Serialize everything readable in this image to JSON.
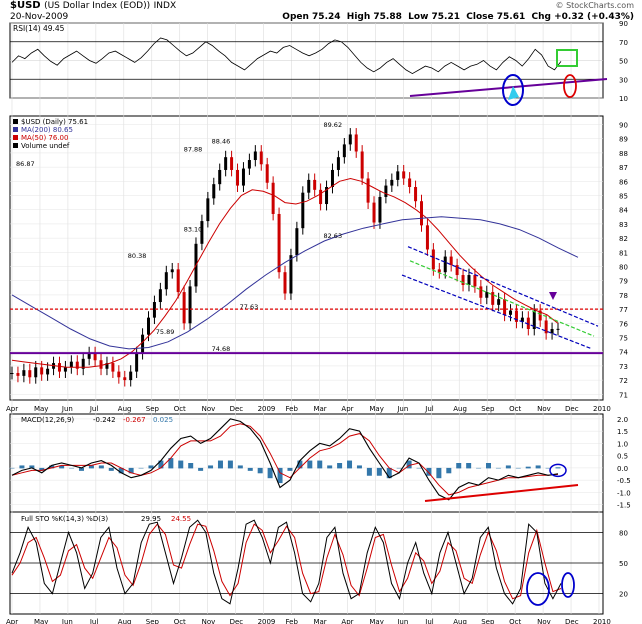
{
  "header": {
    "symbol": "$USD",
    "name": "(US Dollar Index (EOD))",
    "exchange": "INDX",
    "date": "20-Nov-2009",
    "open_label": "Open",
    "open": "75.24",
    "high_label": "High",
    "high": "75.88",
    "low_label": "Low",
    "low": "75.21",
    "close_label": "Close",
    "close": "75.61",
    "chg_label": "Chg",
    "chg": "+0.32 (+0.43%)",
    "copyright": "© StockCharts.com"
  },
  "colors": {
    "price_up": "#000000",
    "price_down": "#cc0000",
    "ma200": "#333399",
    "ma50": "#cc0000",
    "rsi_line": "#000000",
    "macd_hist": "#3377aa",
    "annotation_purple": "#660099",
    "annotation_blue": "#0000cc",
    "annotation_green": "#33cc33",
    "annotation_red": "#dd0000"
  },
  "chart_data": [
    {
      "panel": "rsi",
      "type": "line",
      "legend": "RSI(14) 49.45",
      "y_ticks": [
        "90",
        "70",
        "50",
        "30",
        "10"
      ],
      "ylim": [
        10,
        90
      ],
      "levels": [
        70,
        30
      ],
      "values": [
        48,
        55,
        52,
        58,
        62,
        55,
        49,
        45,
        52,
        56,
        60,
        55,
        50,
        47,
        52,
        58,
        60,
        56,
        52,
        48,
        53,
        60,
        68,
        74,
        72,
        66,
        60,
        55,
        58,
        64,
        70,
        66,
        60,
        55,
        48,
        44,
        40,
        46,
        52,
        56,
        60,
        58,
        64,
        66,
        62,
        58,
        55,
        58,
        62,
        68,
        72,
        70,
        64,
        56,
        48,
        42,
        38,
        42,
        48,
        52,
        46,
        40,
        36,
        40,
        44,
        42,
        38,
        44,
        48,
        44,
        40,
        44,
        46,
        50,
        44,
        40,
        48,
        54,
        50,
        44,
        52,
        62,
        56,
        44,
        40,
        49
      ]
    },
    {
      "panel": "price",
      "type": "candlestick",
      "legend": [
        "$USD (Daily) 75.61",
        "MA(200) 80.65",
        "MA(50) 76.00",
        "Volume undef"
      ],
      "y_ticks": [
        "90",
        "89",
        "88",
        "87",
        "86",
        "85",
        "84",
        "83",
        "82",
        "81",
        "80",
        "79",
        "78",
        "77",
        "76",
        "75",
        "74",
        "73",
        "72",
        "71"
      ],
      "ylim": [
        70.6,
        90.6
      ],
      "x_labels": [
        "Apr",
        "May",
        "Jun",
        "Jul",
        "Aug",
        "Sep",
        "Oct",
        "Nov",
        "Dec",
        "2009",
        "Feb",
        "Mar",
        "Apr",
        "May",
        "Jun",
        "Jul",
        "Aug",
        "Sep",
        "Oct",
        "Nov",
        "Dec",
        "2010"
      ],
      "close": [
        72.5,
        72.3,
        72.7,
        72.2,
        72.9,
        72.4,
        72.8,
        73.2,
        72.6,
        72.9,
        73.3,
        72.8,
        73.5,
        73.9,
        73.4,
        72.8,
        73.2,
        72.6,
        72.2,
        72.0,
        72.6,
        73.9,
        75.2,
        76.4,
        77.5,
        78.4,
        79.6,
        79.8,
        78.2,
        76.0,
        78.6,
        81.6,
        83.2,
        84.8,
        85.8,
        86.8,
        87.7,
        86.8,
        85.7,
        86.9,
        87.5,
        88.1,
        87.2,
        85.9,
        83.7,
        79.6,
        78.1,
        80.8,
        82.7,
        85.2,
        86.1,
        85.4,
        84.4,
        85.6,
        86.8,
        87.7,
        88.6,
        89.3,
        88.1,
        86.2,
        84.5,
        83.1,
        84.9,
        85.7,
        86.1,
        86.7,
        86.2,
        85.6,
        84.6,
        82.9,
        81.2,
        79.8,
        79.6,
        80.7,
        80.1,
        79.4,
        78.7,
        79.4,
        78.6,
        77.8,
        78.2,
        77.3,
        77.7,
        76.6,
        76.9,
        76.1,
        76.4,
        75.6,
        76.9,
        76.2,
        75.3,
        75.6,
        75.61
      ],
      "ma50": [
        73.4,
        73.3,
        73.2,
        73.1,
        73.0,
        72.9,
        72.9,
        72.9,
        73.0,
        73.2,
        73.5,
        74.0,
        74.7,
        75.5,
        76.5,
        77.6,
        78.9,
        80.3,
        81.7,
        83.0,
        84.1,
        85.0,
        85.4,
        85.3,
        85.0,
        84.5,
        84.4,
        84.6,
        85.0,
        85.5,
        86.0,
        86.2,
        86.0,
        85.6,
        85.2,
        84.9,
        84.5,
        84.0,
        83.4,
        82.6,
        81.7,
        80.8,
        80.0,
        79.3,
        78.7,
        78.2,
        77.7,
        77.3,
        76.9,
        76.6,
        76.0
      ],
      "ma200": [
        78.0,
        77.2,
        76.4,
        75.6,
        74.9,
        74.4,
        74.2,
        74.3,
        74.7,
        75.4,
        76.3,
        77.3,
        78.4,
        79.4,
        80.3,
        81.1,
        81.8,
        82.3,
        82.7,
        83.0,
        83.3,
        83.4,
        83.5,
        83.4,
        83.3,
        83.0,
        82.6,
        82.0,
        81.3,
        80.65
      ],
      "data_labels": [
        {
          "text": "80.38",
          "value": 80.38,
          "month": "Aug"
        },
        {
          "text": "75.89",
          "value": 75.89,
          "month": "Sep"
        },
        {
          "text": "87.88",
          "value": 87.88,
          "month": "Oct"
        },
        {
          "text": "83.10",
          "value": 83.1,
          "month": "Oct"
        },
        {
          "text": "88.46",
          "value": 88.46,
          "month": "Nov"
        },
        {
          "text": "77.63",
          "value": 77.63,
          "month": "Dec"
        },
        {
          "text": "89.62",
          "value": 89.62,
          "month": "Mar"
        },
        {
          "text": "86.87",
          "value": 86.87,
          "month": "Apr"
        },
        {
          "text": "82.63",
          "value": 82.63,
          "month": "Mar"
        },
        {
          "text": "74.68",
          "value": 74.68,
          "month": "Nov"
        }
      ],
      "reference_lines": [
        77.0,
        73.9
      ]
    },
    {
      "panel": "macd",
      "type": "line",
      "legend": [
        "MACD(12,26,9)",
        "-0.242",
        "-0.267",
        "0.025"
      ],
      "y_ticks": [
        "2.0",
        "1.5",
        "1.0",
        "0.5",
        "0.0",
        "-0.5",
        "-1.0",
        "-1.5"
      ],
      "ylim": [
        -1.8,
        2.2
      ],
      "macd": [
        -0.3,
        -0.1,
        0.0,
        -0.2,
        0.1,
        0.2,
        0.1,
        0.0,
        0.2,
        0.3,
        0.1,
        -0.2,
        -0.4,
        -0.3,
        -0.1,
        0.3,
        0.8,
        1.2,
        1.3,
        1.0,
        1.2,
        1.6,
        2.0,
        1.9,
        1.6,
        1.1,
        0.2,
        -0.8,
        -0.5,
        0.3,
        0.7,
        1.0,
        0.9,
        1.2,
        1.6,
        1.5,
        0.8,
        0.2,
        -0.4,
        -0.2,
        0.4,
        0.2,
        -0.5,
        -1.1,
        -1.3,
        -0.8,
        -0.6,
        -0.7,
        -0.4,
        -0.5,
        -0.3,
        -0.4,
        -0.3,
        -0.2,
        -0.3,
        -0.242
      ],
      "signal": [
        -0.3,
        -0.2,
        -0.1,
        -0.1,
        0.0,
        0.1,
        0.1,
        0.1,
        0.1,
        0.2,
        0.2,
        0.0,
        -0.2,
        -0.3,
        -0.2,
        0.0,
        0.4,
        0.9,
        1.1,
        1.1,
        1.1,
        1.3,
        1.7,
        1.8,
        1.7,
        1.3,
        0.6,
        -0.2,
        -0.4,
        0.0,
        0.4,
        0.7,
        0.8,
        1.0,
        1.3,
        1.4,
        1.1,
        0.5,
        0.0,
        -0.2,
        0.1,
        0.2,
        -0.2,
        -0.7,
        -1.1,
        -1.0,
        -0.8,
        -0.7,
        -0.6,
        -0.5,
        -0.4,
        -0.4,
        -0.35,
        -0.3,
        -0.3,
        -0.267
      ]
    },
    {
      "panel": "stochastic",
      "type": "line",
      "legend": [
        "Full STO %K(14,3) %D(3)",
        "29.95",
        "24.55"
      ],
      "y_ticks": [
        "80",
        "50",
        "20"
      ],
      "ylim": [
        0,
        100
      ],
      "levels": [
        80,
        20
      ],
      "k": [
        40,
        60,
        85,
        70,
        30,
        20,
        50,
        80,
        60,
        25,
        40,
        75,
        85,
        45,
        20,
        30,
        70,
        88,
        90,
        60,
        30,
        55,
        85,
        92,
        80,
        40,
        15,
        10,
        45,
        88,
        92,
        75,
        50,
        85,
        90,
        60,
        20,
        12,
        30,
        75,
        85,
        40,
        15,
        20,
        60,
        85,
        70,
        30,
        15,
        50,
        70,
        40,
        20,
        60,
        80,
        50,
        20,
        35,
        75,
        85,
        45,
        20,
        10,
        25,
        88,
        80,
        30,
        15,
        30
      ],
      "d": [
        38,
        50,
        70,
        75,
        55,
        32,
        38,
        62,
        68,
        45,
        35,
        55,
        75,
        65,
        38,
        28,
        50,
        78,
        88,
        78,
        48,
        45,
        68,
        88,
        86,
        62,
        32,
        18,
        30,
        70,
        88,
        82,
        60,
        72,
        86,
        75,
        40,
        20,
        22,
        55,
        78,
        58,
        28,
        18,
        45,
        75,
        78,
        48,
        22,
        35,
        60,
        52,
        30,
        42,
        70,
        62,
        35,
        30,
        58,
        80,
        62,
        32,
        15,
        18,
        60,
        82,
        50,
        22,
        25
      ]
    }
  ]
}
